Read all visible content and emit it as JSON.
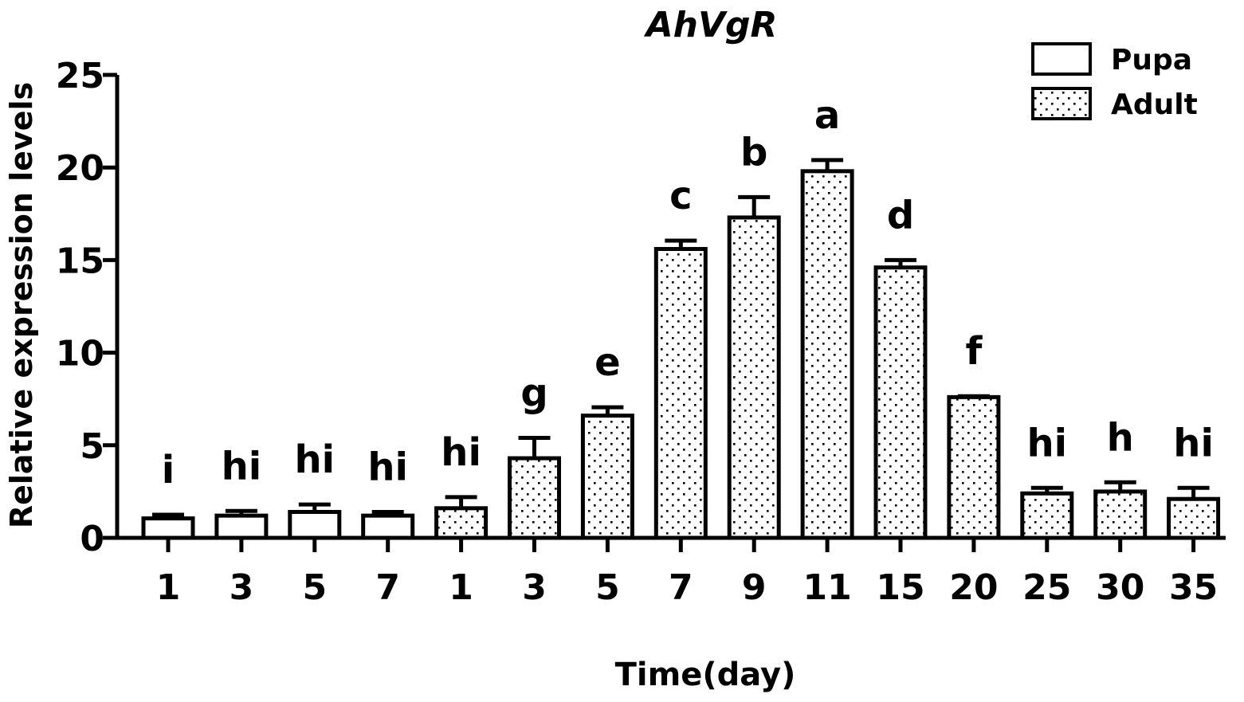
{
  "chart_data": {
    "type": "bar",
    "title": "AhVgR",
    "xlabel": "Time(day)",
    "ylabel": "Relative expression levels",
    "ylim": [
      0,
      25
    ],
    "yticks": [
      "0",
      "5",
      "10",
      "15",
      "20",
      "25"
    ],
    "categories": [
      "1",
      "3",
      "5",
      "7",
      "1",
      "3",
      "5",
      "7",
      "9",
      "11",
      "15",
      "20",
      "25",
      "30",
      "35"
    ],
    "stage": [
      "Pupa",
      "Pupa",
      "Pupa",
      "Pupa",
      "Adult",
      "Adult",
      "Adult",
      "Adult",
      "Adult",
      "Adult",
      "Adult",
      "Adult",
      "Adult",
      "Adult",
      "Adult"
    ],
    "values": [
      1.05,
      1.2,
      1.4,
      1.2,
      1.6,
      4.3,
      6.6,
      15.6,
      17.3,
      19.8,
      14.6,
      7.6,
      2.4,
      2.5,
      2.1
    ],
    "errors": [
      0.2,
      0.25,
      0.4,
      0.2,
      0.6,
      1.1,
      0.45,
      0.45,
      1.1,
      0.6,
      0.4,
      0.05,
      0.3,
      0.5,
      0.6
    ],
    "significance": [
      "i",
      "hi",
      "hi",
      "hi",
      "hi",
      "g",
      "e",
      "c",
      "b",
      "a",
      "d",
      "f",
      "hi",
      "h",
      "hi"
    ],
    "legend": [
      {
        "name": "Pupa",
        "pattern": "plain"
      },
      {
        "name": "Adult",
        "pattern": "dotted"
      }
    ],
    "legend_position": "top-right",
    "grid": false
  }
}
